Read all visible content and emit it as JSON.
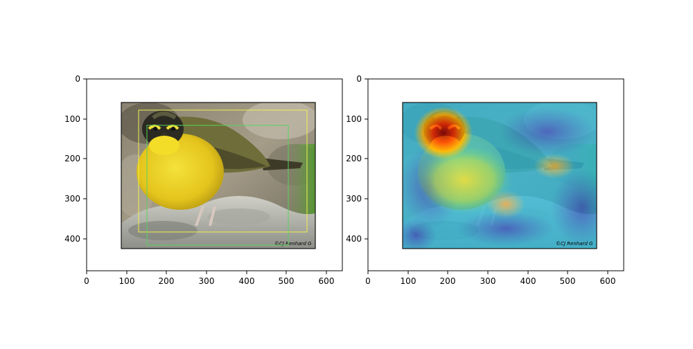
{
  "panels": [
    {
      "name": "left",
      "x_ticks": [
        "0",
        "100",
        "200",
        "300",
        "400",
        "500",
        "600"
      ],
      "y_ticks": [
        "0",
        "100",
        "200",
        "300",
        "400"
      ],
      "image": {
        "content": "bird-photo",
        "watermark": "©CJ Renhard G",
        "overlay": "bounding-boxes",
        "box_colors": [
          "#f0f050",
          "#5ad25a"
        ]
      }
    },
    {
      "name": "right",
      "x_ticks": [
        "0",
        "100",
        "200",
        "300",
        "400",
        "500",
        "600"
      ],
      "y_ticks": [
        "0",
        "100",
        "200",
        "300",
        "400"
      ],
      "image": {
        "content": "bird-photo",
        "watermark": "©CJ Renhard G",
        "overlay": "attention-heatmap",
        "heatmap_colors": [
          "#8b0000",
          "#ff3300",
          "#ffd000",
          "#40e0a0",
          "#30b8d8",
          "#3040c0"
        ]
      }
    }
  ]
}
